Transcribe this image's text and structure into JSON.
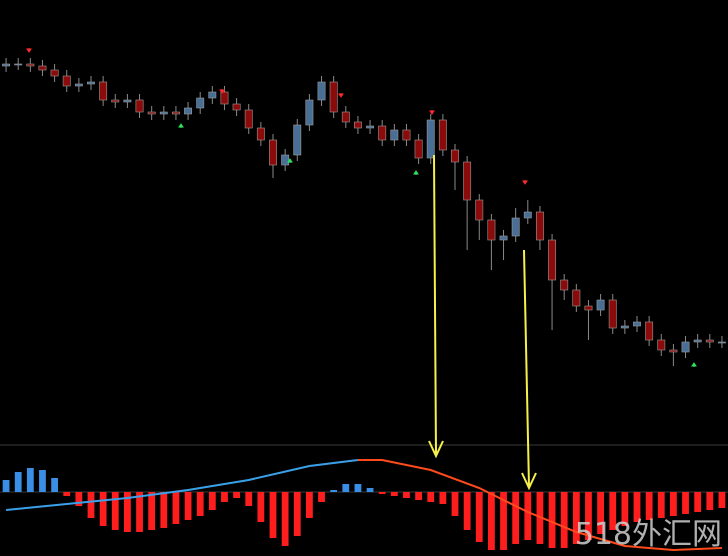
{
  "chart_data": [
    {
      "type": "candlestick",
      "xlim": [
        -0.5,
        59.5
      ],
      "ylim": [
        0,
        440
      ],
      "up_color": "#4a6f96",
      "down_color": "#8b0a0a",
      "open": [
        374,
        376,
        376,
        374,
        370,
        364,
        354,
        356,
        358,
        340,
        338,
        340,
        328,
        326,
        328,
        326,
        332,
        342,
        348,
        336,
        330,
        312,
        300,
        275,
        285,
        315,
        340,
        358,
        328,
        318,
        312,
        314,
        300,
        310,
        300,
        282,
        320,
        290,
        278,
        240,
        220,
        200,
        204,
        222,
        228,
        200,
        160,
        150,
        134,
        130,
        140,
        112,
        114,
        118,
        100,
        90,
        88,
        98,
        100,
        98
      ],
      "high": [
        382,
        382,
        382,
        380,
        376,
        370,
        362,
        364,
        364,
        346,
        346,
        346,
        334,
        334,
        334,
        338,
        348,
        354,
        354,
        342,
        336,
        318,
        306,
        291,
        321,
        346,
        364,
        364,
        334,
        324,
        320,
        320,
        316,
        316,
        306,
        326,
        326,
        296,
        284,
        246,
        226,
        210,
        232,
        240,
        234,
        206,
        166,
        156,
        140,
        146,
        146,
        120,
        124,
        124,
        106,
        96,
        104,
        106,
        106,
        104
      ],
      "low": [
        368,
        370,
        368,
        364,
        358,
        348,
        348,
        350,
        334,
        332,
        332,
        322,
        320,
        320,
        320,
        320,
        326,
        336,
        330,
        324,
        306,
        294,
        262,
        269,
        279,
        309,
        334,
        322,
        312,
        306,
        306,
        294,
        294,
        294,
        276,
        276,
        284,
        250,
        190,
        200,
        170,
        180,
        198,
        216,
        190,
        110,
        140,
        128,
        100,
        124,
        106,
        106,
        108,
        94,
        84,
        74,
        82,
        92,
        92,
        92
      ],
      "close": [
        376,
        376,
        374,
        370,
        364,
        354,
        356,
        358,
        340,
        338,
        340,
        328,
        326,
        328,
        326,
        332,
        342,
        348,
        336,
        330,
        312,
        300,
        275,
        285,
        315,
        340,
        358,
        328,
        318,
        312,
        314,
        300,
        310,
        300,
        282,
        320,
        290,
        278,
        240,
        220,
        200,
        204,
        222,
        228,
        200,
        160,
        150,
        134,
        130,
        140,
        112,
        114,
        118,
        100,
        90,
        88,
        98,
        100,
        98,
        98
      ]
    },
    {
      "type": "bar",
      "xlim": [
        -0.5,
        59.5
      ],
      "ylim": [
        -64,
        44
      ],
      "positive_color": "#3a8ee6",
      "negative_color": "#ff1e1e",
      "values": [
        12,
        20,
        24,
        22,
        14,
        -4,
        -14,
        -26,
        -34,
        -38,
        -40,
        -40,
        -38,
        -36,
        -32,
        -28,
        -24,
        -18,
        -10,
        -6,
        -14,
        -30,
        -46,
        -54,
        -44,
        -26,
        -10,
        2,
        8,
        8,
        4,
        -2,
        -4,
        -6,
        -8,
        -10,
        -12,
        -24,
        -38,
        -50,
        -58,
        -58,
        -52,
        -48,
        -52,
        -56,
        -56,
        -52,
        -48,
        -42,
        -38,
        -34,
        -30,
        -28,
        -26,
        -24,
        -22,
        -20,
        -18,
        -16
      ],
      "lines": [
        {
          "color": "#3aa0e8",
          "x": [
            0,
            5,
            10,
            15,
            20,
            25,
            29
          ],
          "values": [
            -18,
            -12,
            -6,
            2,
            12,
            26,
            32
          ]
        },
        {
          "color": "#ff4a1e",
          "x": [
            29,
            31,
            35,
            39,
            43,
            47,
            51,
            55,
            59
          ],
          "values": [
            32,
            32,
            22,
            4,
            -20,
            -40,
            -54,
            -58,
            -56
          ]
        }
      ]
    }
  ],
  "watermark": "518外汇网"
}
